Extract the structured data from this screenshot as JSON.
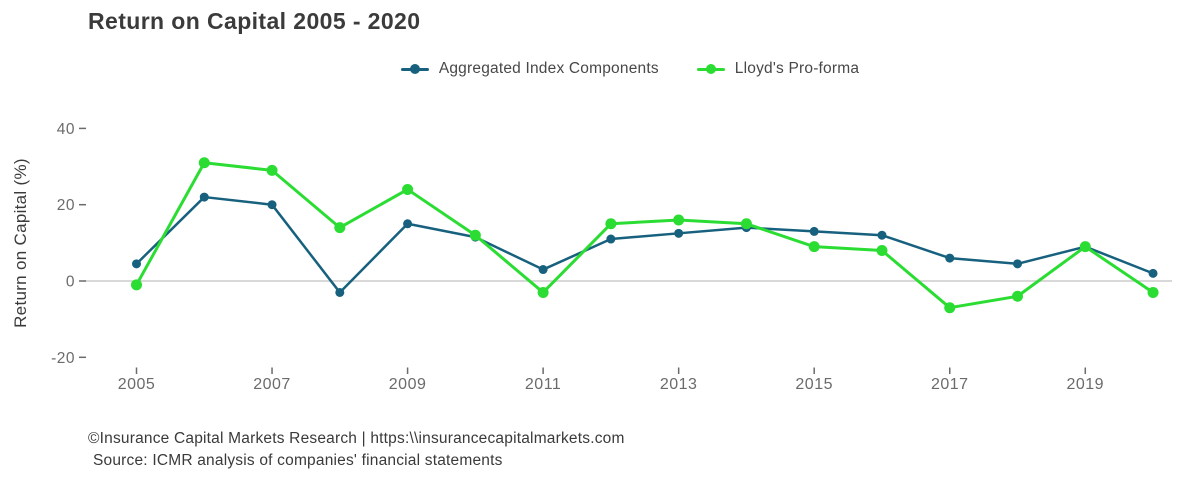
{
  "title": "Return on Capital 2005 - 2020",
  "legend": {
    "items": [
      {
        "label": "Aggregated Index Components",
        "color": "#17617e"
      },
      {
        "label": "Lloyd's Pro-forma",
        "color": "#2bdd33"
      }
    ]
  },
  "y_axis": {
    "label": "Return on Capital (%)"
  },
  "footer": {
    "line1": "©Insurance Capital Markets Research | https:\\\\insurancecapitalmarkets.com",
    "line2": "Source: ICMR analysis of companies' financial statements"
  },
  "chart_data": {
    "type": "line",
    "title": "Return on Capital 2005 - 2020",
    "xlabel": "",
    "ylabel": "Return on Capital (%)",
    "x": [
      2005,
      2006,
      2007,
      2008,
      2009,
      2010,
      2011,
      2012,
      2013,
      2014,
      2015,
      2016,
      2017,
      2018,
      2019,
      2020
    ],
    "series": [
      {
        "name": "Aggregated Index Components",
        "color": "#17617e",
        "line_width": 2.5,
        "marker_radius": 4.5,
        "values": [
          4.5,
          22,
          20,
          -3,
          15,
          11.5,
          3,
          11,
          12.5,
          14,
          13,
          12,
          6,
          4.5,
          9,
          2
        ]
      },
      {
        "name": "Lloyd's Pro-forma",
        "color": "#2bdd33",
        "line_width": 3,
        "marker_radius": 5.5,
        "values": [
          -1,
          31,
          29,
          14,
          24,
          12,
          -3,
          15,
          16,
          15,
          9,
          8,
          -7,
          -4,
          9,
          -3
        ]
      }
    ],
    "ylim": [
      -25,
      45
    ],
    "yticks": [
      40,
      20,
      0,
      -20
    ],
    "xticks": [
      2005,
      2007,
      2009,
      2011,
      2013,
      2015,
      2017,
      2019
    ],
    "grid": false,
    "zero_line": true,
    "zero_line_color": "#cccccc",
    "tick_color": "#6b6b6b",
    "legend_position": "top-center"
  }
}
